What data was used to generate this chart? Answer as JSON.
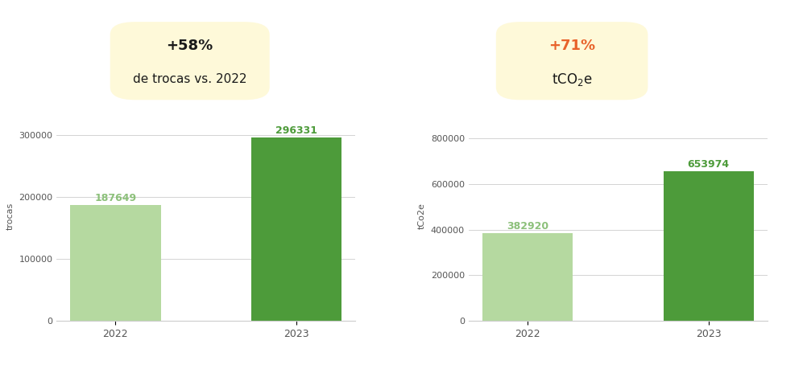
{
  "chart1": {
    "categories": [
      "2022",
      "2023"
    ],
    "values": [
      187649,
      296331
    ],
    "bar_colors": [
      "#b5d9a0",
      "#4d9b3a"
    ],
    "label_colors": [
      "#8cc07a",
      "#4d9b3a"
    ],
    "ylabel": "trocas",
    "ylim": [
      0,
      340000
    ],
    "yticks": [
      0,
      100000,
      200000,
      300000
    ],
    "badge_text_line1": "+58%",
    "badge_text_line2": "de trocas vs. 2022",
    "badge_color": "#fef9d9",
    "badge_percent_color": "#1a1a1a",
    "badge_subtitle_color": "#1a1a1a"
  },
  "chart2": {
    "categories": [
      "2022",
      "2023"
    ],
    "values": [
      382920,
      653974
    ],
    "bar_colors": [
      "#b5d9a0",
      "#4d9b3a"
    ],
    "label_colors": [
      "#8cc07a",
      "#4d9b3a"
    ],
    "ylabel": "tCo2e",
    "ylim": [
      0,
      920000
    ],
    "yticks": [
      0,
      200000,
      400000,
      600000,
      800000
    ],
    "badge_text_line1": "+71%",
    "badge_color": "#fef9d9",
    "badge_percent_color": "#e8622a",
    "badge_subtitle_color": "#1a1a1a"
  },
  "background_color": "#ffffff",
  "grid_color": "#cccccc",
  "tick_label_color": "#555555",
  "bar_label_fontsize": 9,
  "axis_label_fontsize": 8,
  "tick_fontsize": 8
}
